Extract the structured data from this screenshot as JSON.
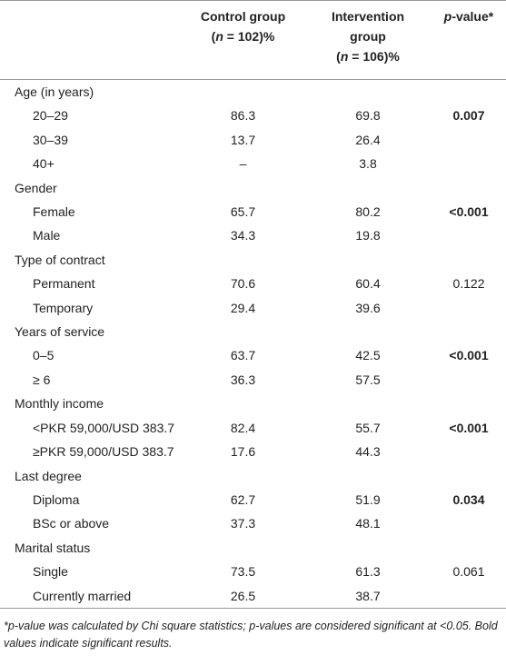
{
  "header": {
    "columns": [
      {
        "parts": [
          {
            "text": "Control group",
            "italic": false,
            "break": true
          },
          {
            "text": "(",
            "italic": false
          },
          {
            "text": "n",
            "italic": true
          },
          {
            "text": " = 102)%",
            "italic": false
          }
        ]
      },
      {
        "parts": [
          {
            "text": "Intervention group",
            "italic": false,
            "break": true
          },
          {
            "text": "(",
            "italic": false
          },
          {
            "text": "n",
            "italic": true
          },
          {
            "text": " = 106)%",
            "italic": false
          }
        ]
      },
      {
        "parts": [
          {
            "text": "p",
            "italic": true
          },
          {
            "text": "-value*",
            "italic": false
          }
        ]
      }
    ]
  },
  "groups": [
    {
      "label": "Age (in years)",
      "rows": [
        {
          "label": "20–29",
          "control": 86.3,
          "intervention": 69.8,
          "p": "0.007",
          "p_bold": true
        },
        {
          "label": "30–39",
          "control": 13.7,
          "intervention": 26.4
        },
        {
          "label": "40+",
          "control": "–",
          "intervention": 3.8
        }
      ]
    },
    {
      "label": "Gender",
      "rows": [
        {
          "label": "Female",
          "control": 65.7,
          "intervention": 80.2,
          "p": "<0.001",
          "p_bold": true
        },
        {
          "label": "Male",
          "control": 34.3,
          "intervention": 19.8
        }
      ]
    },
    {
      "label": "Type of contract",
      "rows": [
        {
          "label": "Permanent",
          "control": 70.6,
          "intervention": 60.4,
          "p": "0.122",
          "p_bold": false
        },
        {
          "label": "Temporary",
          "control": 29.4,
          "intervention": 39.6
        }
      ]
    },
    {
      "label": "Years of service",
      "rows": [
        {
          "label": "0–5",
          "control": 63.7,
          "intervention": 42.5,
          "p": "<0.001",
          "p_bold": true
        },
        {
          "label": "≥ 6",
          "control": 36.3,
          "intervention": 57.5
        }
      ]
    },
    {
      "label": "Monthly income",
      "rows": [
        {
          "label": "<PKR 59,000/USD 383.7",
          "control": 82.4,
          "intervention": 55.7,
          "p": "<0.001",
          "p_bold": true
        },
        {
          "label": "≥PKR 59,000/USD 383.7",
          "control": 17.6,
          "intervention": 44.3
        }
      ]
    },
    {
      "label": "Last degree",
      "rows": [
        {
          "label": "Diploma",
          "control": 62.7,
          "intervention": 51.9,
          "p": "0.034",
          "p_bold": true
        },
        {
          "label": "BSc or above",
          "control": 37.3,
          "intervention": 48.1
        }
      ]
    },
    {
      "label": "Marital status",
      "rows": [
        {
          "label": "Single",
          "control": 73.5,
          "intervention": 61.3,
          "p": "0.061",
          "p_bold": false
        },
        {
          "label": "Currently married",
          "control": 26.5,
          "intervention": 38.7
        }
      ]
    }
  ],
  "footnote": "*p-value was calculated by Chi square statistics; p-values are considered significant at <0.05. Bold values indicate significant results."
}
